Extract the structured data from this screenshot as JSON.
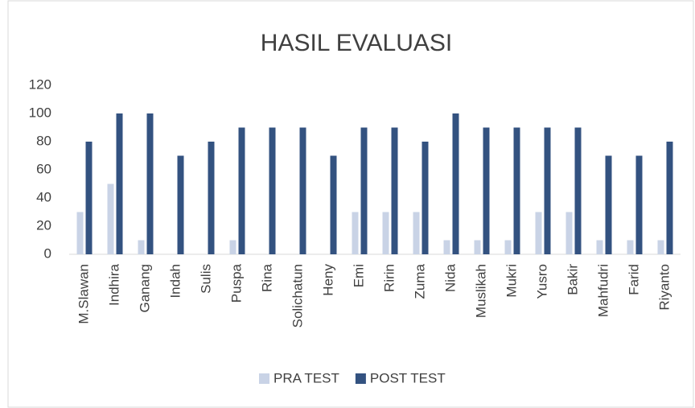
{
  "chart_data": {
    "type": "bar",
    "title": "HASIL EVALUASI",
    "categories": [
      "M.Slawan",
      "Indhira",
      "Ganang",
      "Indah",
      "Sulis",
      "Puspa",
      "Rina",
      "Solichatun",
      "Heny",
      "Emi",
      "Ririn",
      "Zuma",
      "Nida",
      "Muslikah",
      "Mukri",
      "Yusro",
      "Bakir",
      "Mahfudri",
      "Farid",
      "Riyanto"
    ],
    "series": [
      {
        "name": "PRA TEST",
        "color": "#c9d3e6",
        "values": [
          30,
          50,
          10,
          0,
          0,
          10,
          0,
          0,
          0,
          30,
          30,
          30,
          10,
          10,
          10,
          30,
          30,
          10,
          10,
          10
        ]
      },
      {
        "name": "POST TEST",
        "color": "#335280",
        "values": [
          80,
          100,
          100,
          70,
          80,
          90,
          90,
          90,
          70,
          90,
          90,
          80,
          100,
          90,
          90,
          90,
          90,
          70,
          70,
          80
        ]
      }
    ],
    "ylim": [
      0,
      120
    ],
    "yticks": [
      0,
      20,
      40,
      60,
      80,
      100,
      120
    ],
    "grid": false,
    "legend": "bottom"
  }
}
